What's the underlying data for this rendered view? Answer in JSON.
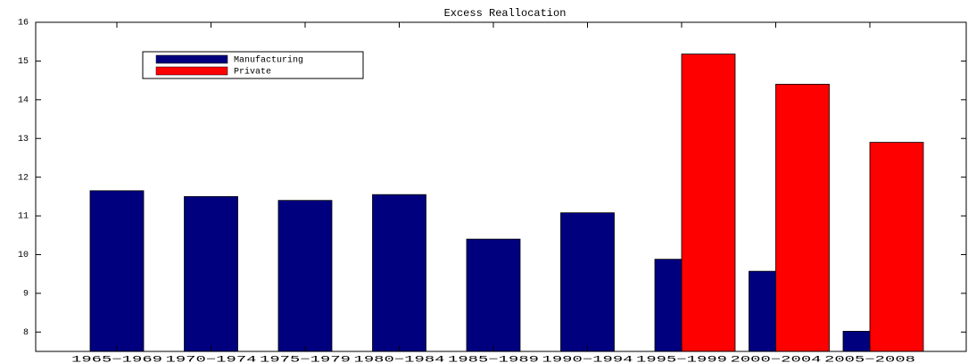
{
  "chart_data": {
    "type": "bar",
    "title": "Excess Reallocation",
    "categories": [
      "1965−1969",
      "1970−1974",
      "1975−1979",
      "1980−1984",
      "1985−1989",
      "1990−1994",
      "1995−1999",
      "2000−2004",
      "2005−2008"
    ],
    "series": [
      {
        "name": "Manufacturing",
        "color": "#00007f",
        "values": [
          11.65,
          11.5,
          11.4,
          11.55,
          10.4,
          11.08,
          9.88,
          9.57,
          8.02
        ]
      },
      {
        "name": "Private",
        "color": "#ff0000",
        "values": [
          null,
          null,
          null,
          null,
          null,
          null,
          15.18,
          14.4,
          12.9
        ]
      }
    ],
    "ylim": [
      7.5,
      16
    ],
    "yticks": [
      8,
      9,
      10,
      11,
      12,
      13,
      14,
      15,
      16
    ],
    "legend": "upper left"
  }
}
